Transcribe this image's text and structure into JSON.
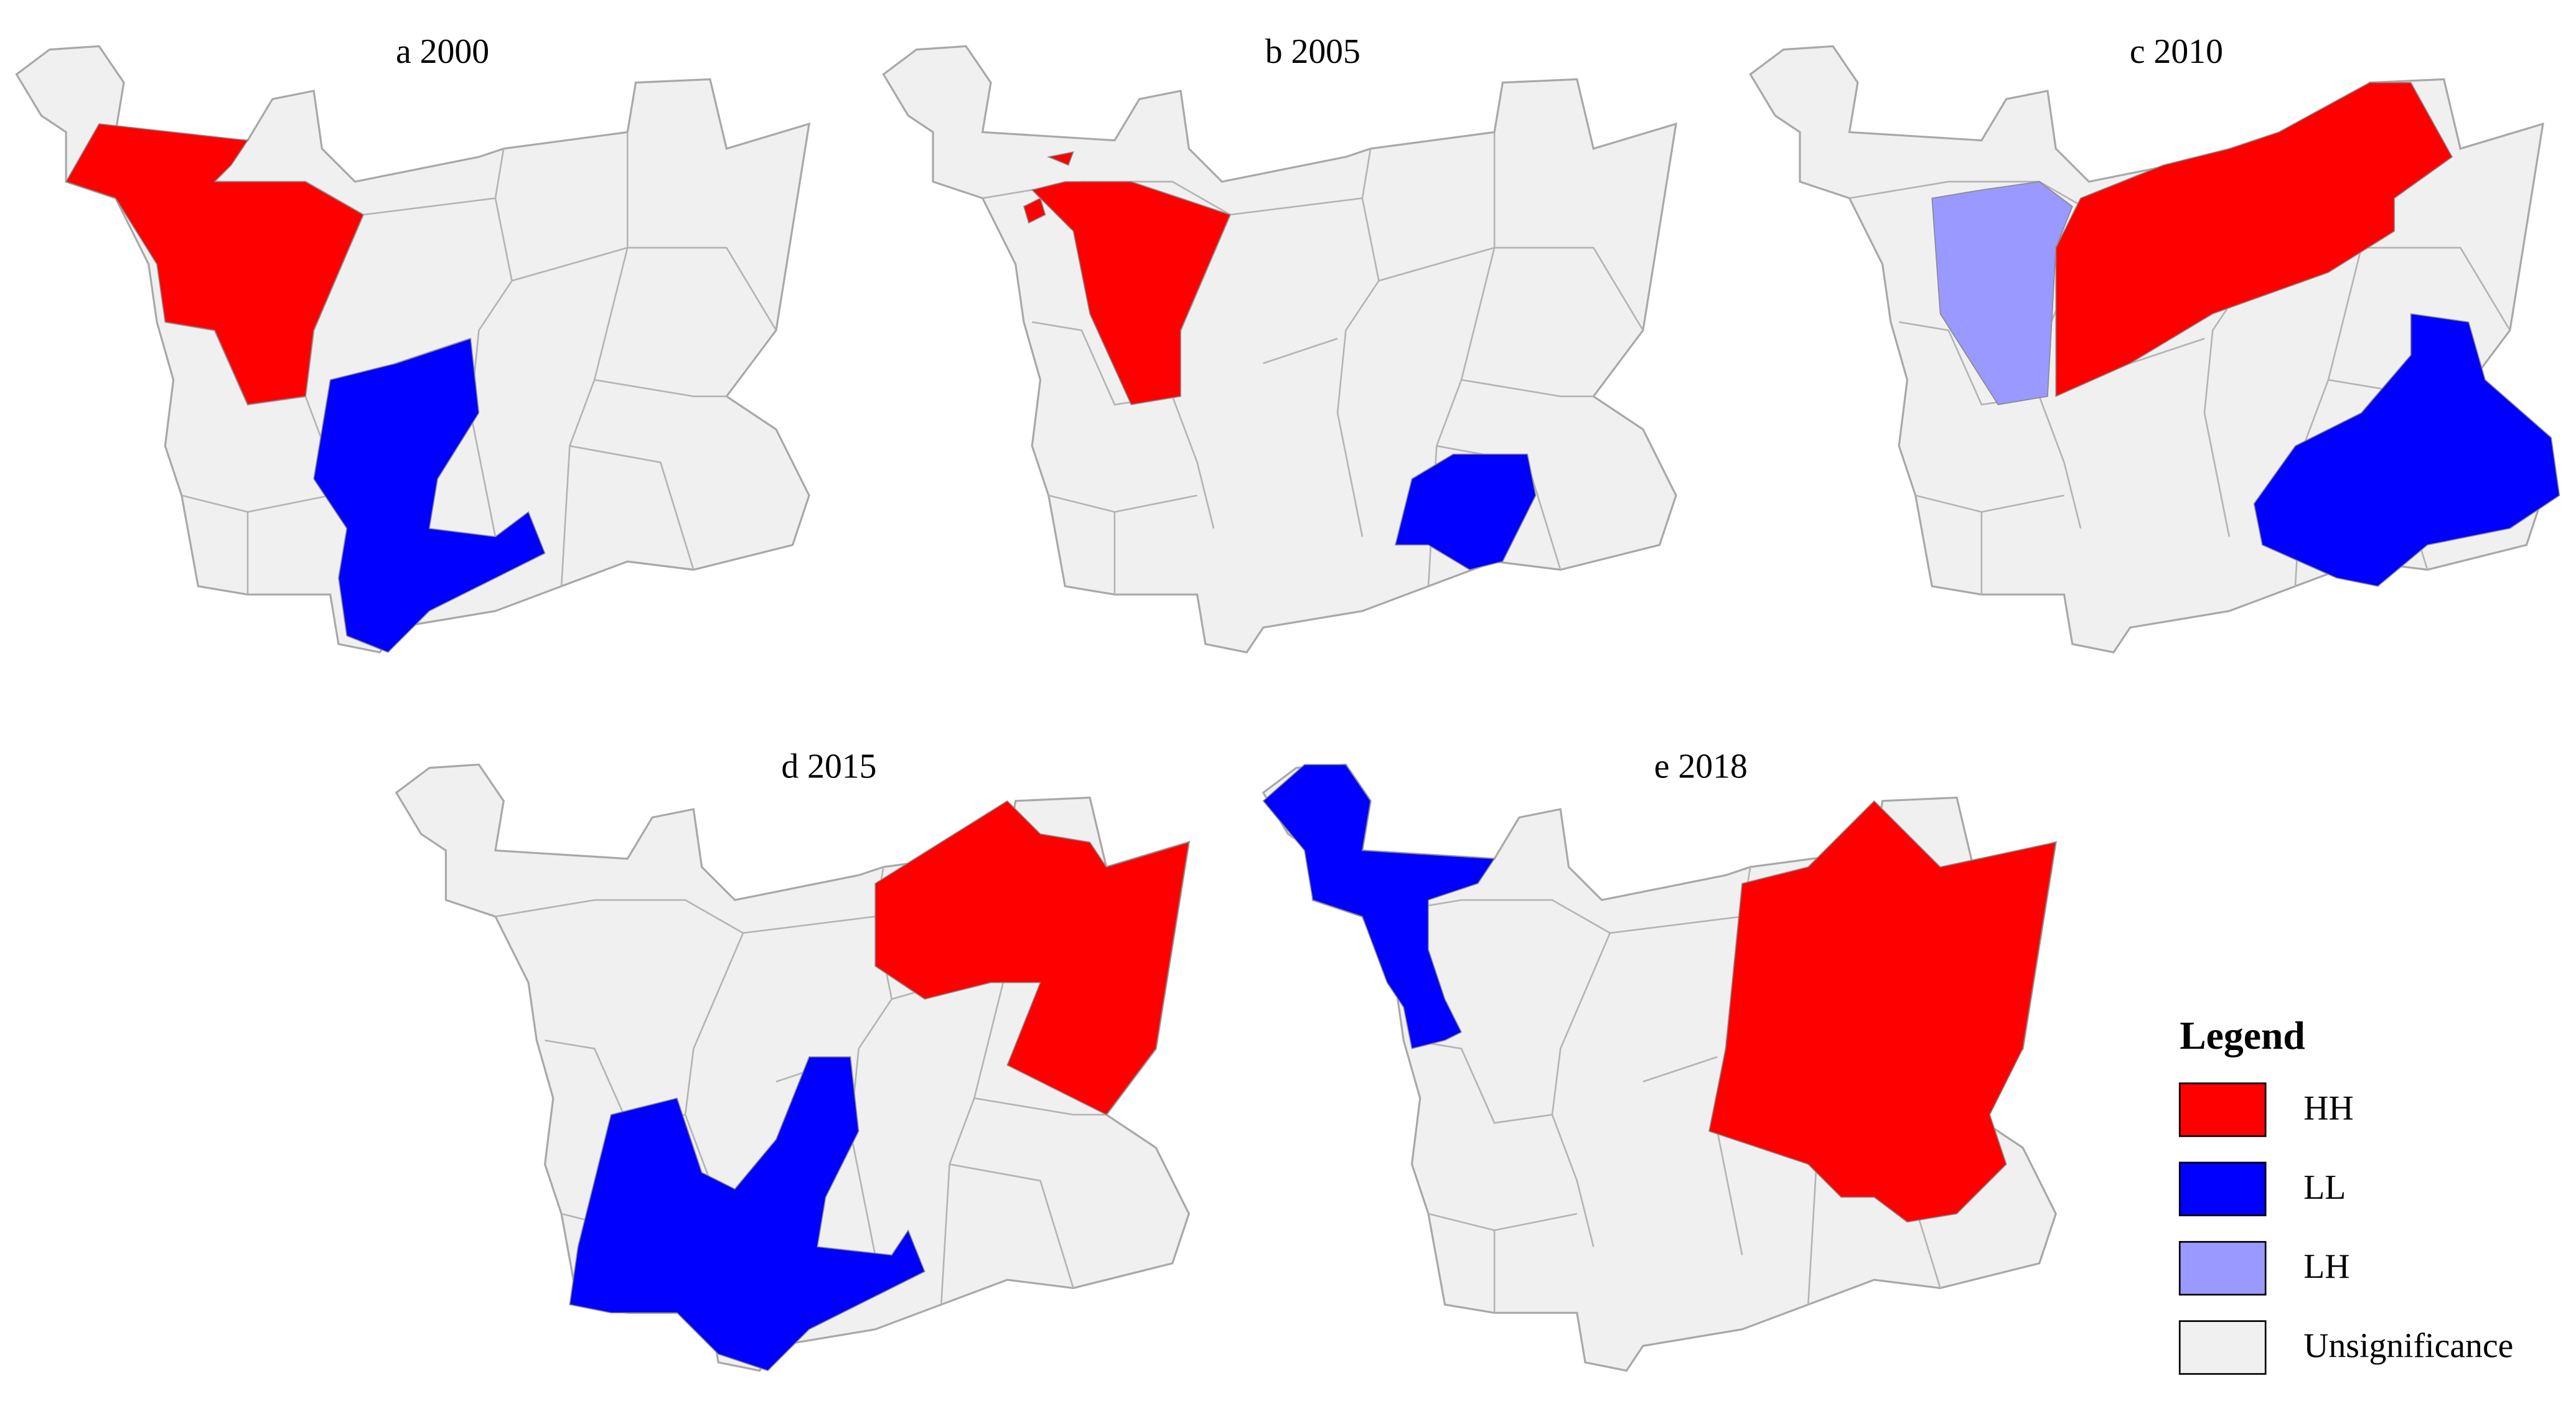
{
  "panels": [
    {
      "title": "a 2000"
    },
    {
      "title": "b 2005"
    },
    {
      "title": "c 2010"
    },
    {
      "title": "d 2015"
    },
    {
      "title": "e 2018"
    }
  ],
  "legend": {
    "title": "Legend",
    "items": [
      {
        "label": "HH",
        "color": "#ff0000"
      },
      {
        "label": "LL",
        "color": "#0000ff"
      },
      {
        "label": "LH",
        "color": "#9999ff"
      },
      {
        "label": "Unsignificance",
        "color": "#f0f0f0"
      }
    ]
  }
}
